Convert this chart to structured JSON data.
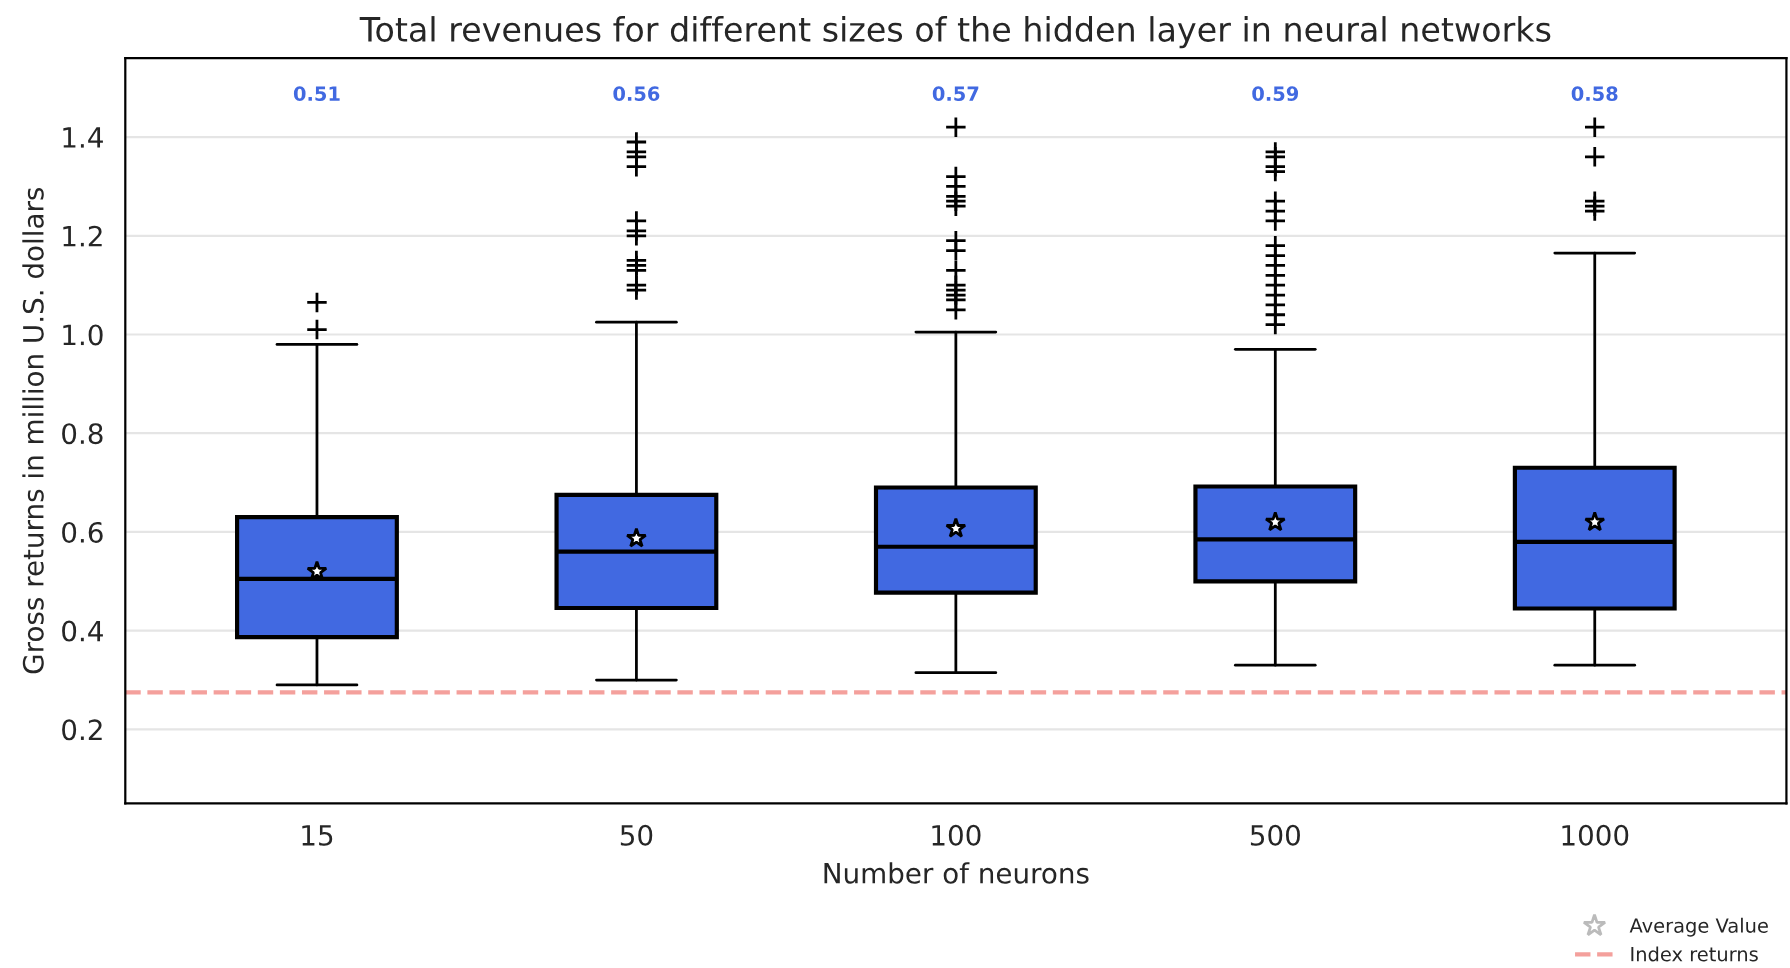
{
  "chart_data": {
    "type": "box",
    "title": "Total revenues for different sizes of the hidden layer in neural networks",
    "xlabel": "Number of neurons",
    "ylabel": "Gross returns in million U.S. dollars",
    "categories": [
      "15",
      "50",
      "100",
      "500",
      "1000"
    ],
    "series": [
      {
        "name": "Average Value",
        "color": "#4169e1",
        "marker": "star",
        "boxes": [
          {
            "low": 0.29,
            "q1": 0.387,
            "median": 0.505,
            "q3": 0.63,
            "high": 0.98,
            "mean": 0.52,
            "outliers": [
              1.065,
              1.01
            ]
          },
          {
            "low": 0.3,
            "q1": 0.446,
            "median": 0.56,
            "q3": 0.675,
            "high": 1.025,
            "mean": 0.587,
            "outliers": [
              1.39,
              1.37,
              1.36,
              1.34,
              1.23,
              1.21,
              1.2,
              1.15,
              1.14,
              1.13,
              1.1,
              1.09
            ]
          },
          {
            "low": 0.315,
            "q1": 0.477,
            "median": 0.57,
            "q3": 0.69,
            "high": 1.005,
            "mean": 0.607,
            "outliers": [
              1.42,
              1.32,
              1.3,
              1.28,
              1.27,
              1.26,
              1.19,
              1.17,
              1.13,
              1.1,
              1.09,
              1.08,
              1.07,
              1.05
            ]
          },
          {
            "low": 0.33,
            "q1": 0.5,
            "median": 0.585,
            "q3": 0.692,
            "high": 0.97,
            "mean": 0.62,
            "outliers": [
              1.37,
              1.36,
              1.34,
              1.33,
              1.27,
              1.25,
              1.23,
              1.18,
              1.16,
              1.14,
              1.12,
              1.1,
              1.08,
              1.06,
              1.04,
              1.02
            ]
          },
          {
            "low": 0.33,
            "q1": 0.445,
            "median": 0.58,
            "q3": 0.73,
            "high": 1.165,
            "mean": 0.62,
            "outliers": [
              1.42,
              1.36,
              1.27,
              1.26,
              1.25
            ]
          }
        ]
      }
    ],
    "annotations": [
      "0.51",
      "0.56",
      "0.57",
      "0.59",
      "0.58"
    ],
    "ref_lines": [
      {
        "axis": "y",
        "value": 0.275,
        "label": "Index returns",
        "color": "#f4a09c",
        "line_style": "dashed"
      }
    ],
    "ylim": [
      0.05,
      1.56
    ],
    "yticks": [
      0.2,
      0.4,
      0.6,
      0.8,
      {
        "value": 1,
        "label": "1.0"
      },
      1.2,
      1.4
    ],
    "grid": "y",
    "legend": "bottom right"
  }
}
